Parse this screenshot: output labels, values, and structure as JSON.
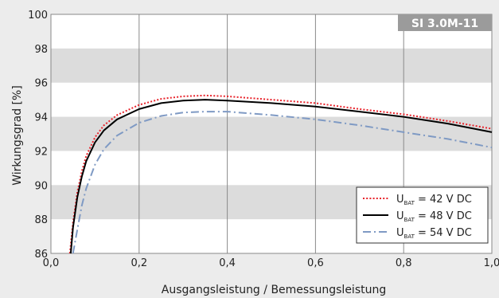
{
  "chart_data": {
    "type": "line",
    "title": "SI 3.0M-11",
    "xlabel": "Ausgangsleistung / Bemessungsleistung",
    "ylabel": "Wirkungsgrad [%]",
    "xlim": [
      0,
      1
    ],
    "ylim": [
      86,
      100
    ],
    "x_ticks": [
      "0,0",
      "0,2",
      "0,4",
      "0,6",
      "0,8",
      "1,0"
    ],
    "y_ticks": [
      "86",
      "88",
      "90",
      "92",
      "94",
      "96",
      "98",
      "100"
    ],
    "grid": "vertical lines at x ticks, alternating grey horizontal bands",
    "legend_position": "bottom-right",
    "series": [
      {
        "name_main": "U",
        "name_sub": "BAT",
        "name_rest": " = 42 V DC",
        "color": "#e8242c",
        "style": "dotted",
        "x": [
          0.043,
          0.05,
          0.06,
          0.07,
          0.08,
          0.1,
          0.12,
          0.15,
          0.2,
          0.25,
          0.3,
          0.35,
          0.4,
          0.5,
          0.6,
          0.7,
          0.8,
          0.9,
          1.0
        ],
        "values": [
          86.0,
          87.8,
          89.6,
          90.8,
          91.7,
          92.8,
          93.5,
          94.1,
          94.7,
          95.05,
          95.2,
          95.25,
          95.2,
          95.0,
          94.8,
          94.45,
          94.15,
          93.75,
          93.3
        ]
      },
      {
        "name_main": "U",
        "name_sub": "BAT",
        "name_rest": " = 48 V DC",
        "color": "#000000",
        "style": "solid",
        "x": [
          0.045,
          0.05,
          0.06,
          0.07,
          0.08,
          0.1,
          0.12,
          0.15,
          0.2,
          0.25,
          0.3,
          0.35,
          0.4,
          0.5,
          0.6,
          0.7,
          0.8,
          0.9,
          1.0
        ],
        "values": [
          86.0,
          87.5,
          89.3,
          90.5,
          91.4,
          92.5,
          93.2,
          93.85,
          94.45,
          94.8,
          94.95,
          95.0,
          94.95,
          94.8,
          94.6,
          94.3,
          94.0,
          93.6,
          93.1
        ]
      },
      {
        "name_main": "U",
        "name_sub": "BAT",
        "name_rest": " = 54 V DC",
        "color": "#7f9ac4",
        "style": "dashdot",
        "x": [
          0.05,
          0.06,
          0.07,
          0.08,
          0.1,
          0.12,
          0.15,
          0.2,
          0.25,
          0.3,
          0.35,
          0.4,
          0.5,
          0.6,
          0.7,
          0.8,
          0.9,
          1.0
        ],
        "values": [
          86.0,
          87.4,
          88.8,
          89.8,
          91.2,
          92.1,
          92.9,
          93.65,
          94.05,
          94.25,
          94.3,
          94.3,
          94.1,
          93.85,
          93.5,
          93.1,
          92.7,
          92.2
        ]
      }
    ]
  }
}
